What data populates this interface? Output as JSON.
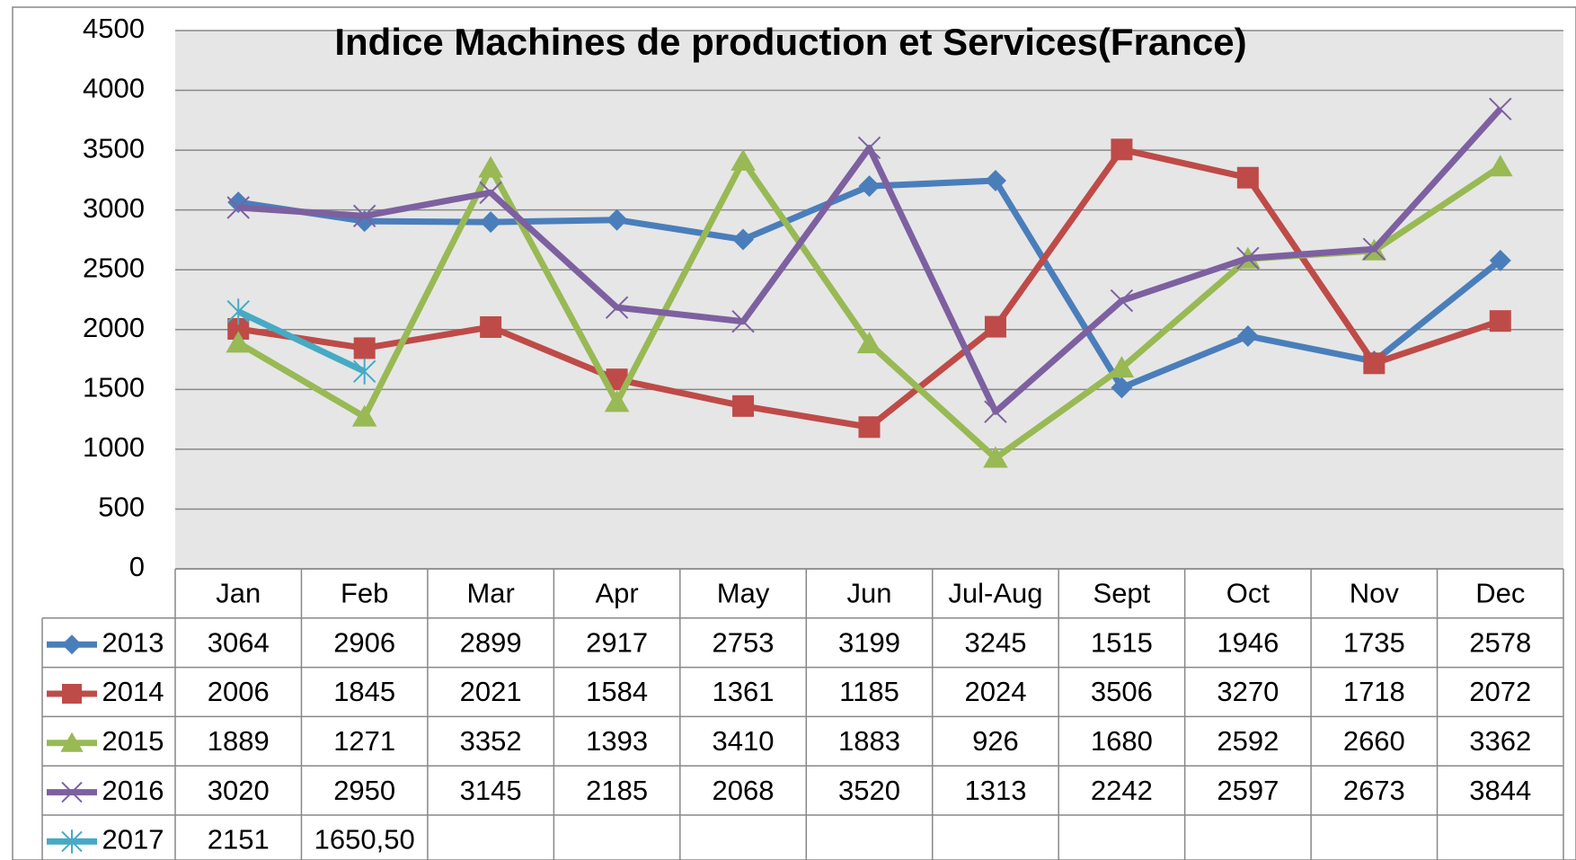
{
  "chart_data": {
    "type": "line",
    "title": "Indice Machines de production et Services(France)",
    "categories": [
      "Jan",
      "Feb",
      "Mar",
      "Apr",
      "May",
      "Jun",
      "Jul-Aug",
      "Sept",
      "Oct",
      "Nov",
      "Dec"
    ],
    "series": [
      {
        "name": "2013",
        "color": "#4a7ebb",
        "marker": "diamond",
        "values": [
          3064,
          2906,
          2899,
          2917,
          2753,
          3199,
          3245,
          1515,
          1946,
          1735,
          2578
        ]
      },
      {
        "name": "2014",
        "color": "#be4b48",
        "marker": "square",
        "values": [
          2006,
          1845,
          2021,
          1584,
          1361,
          1185,
          2024,
          3506,
          3270,
          1718,
          2072
        ]
      },
      {
        "name": "2015",
        "color": "#98b954",
        "marker": "triangle",
        "values": [
          1889,
          1271,
          3352,
          1393,
          3410,
          1883,
          926,
          1680,
          2592,
          2660,
          3362
        ]
      },
      {
        "name": "2016",
        "color": "#7d60a0",
        "marker": "x",
        "values": [
          3020,
          2950,
          3145,
          2185,
          2068,
          3520,
          1313,
          2242,
          2597,
          2673,
          3844
        ]
      },
      {
        "name": "2017",
        "color": "#46aac5",
        "marker": "star",
        "values": [
          2151,
          1650.5,
          null,
          null,
          null,
          null,
          null,
          null,
          null,
          null,
          null
        ],
        "value_labels": [
          "2151",
          "1650,50",
          null,
          null,
          null,
          null,
          null,
          null,
          null,
          null,
          null
        ]
      }
    ],
    "ylim": [
      0,
      4500
    ],
    "yticks": [
      0,
      500,
      1000,
      1500,
      2000,
      2500,
      3000,
      3500,
      4000,
      4500
    ],
    "grid": true,
    "data_table": true
  }
}
